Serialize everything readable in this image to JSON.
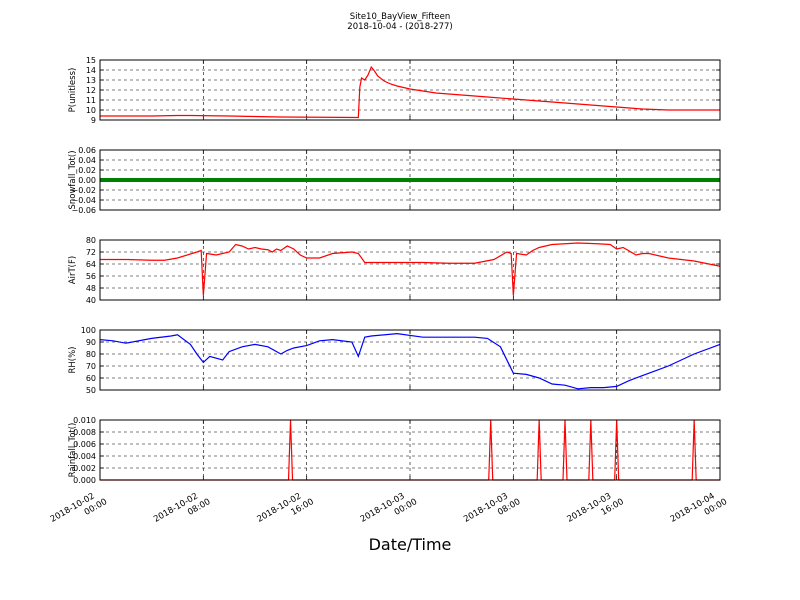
{
  "figure": {
    "title": "Site10_BayView_Fifteen",
    "subtitle": "2018-10-04 - (2018-277)",
    "xlabel": "Date/Time",
    "x_ticks": [
      {
        "line1": "2018-10-02",
        "line2": "00:00"
      },
      {
        "line1": "2018-10-02",
        "line2": "08:00"
      },
      {
        "line1": "2018-10-02",
        "line2": "16:00"
      },
      {
        "line1": "2018-10-03",
        "line2": "00:00"
      },
      {
        "line1": "2018-10-03",
        "line2": "08:00"
      },
      {
        "line1": "2018-10-03",
        "line2": "16:00"
      },
      {
        "line1": "2018-10-04",
        "line2": "00:00"
      }
    ],
    "xlim": [
      "2018-10-02 00:00",
      "2018-10-04 00:00"
    ],
    "grid": true
  },
  "chart_data": [
    {
      "type": "line",
      "ylabel": "P(unitless)",
      "ylim": [
        9,
        15
      ],
      "yticks": [
        "9",
        "10",
        "11",
        "12",
        "13",
        "14",
        "15"
      ],
      "color": "#ff0000",
      "series": [
        {
          "x": [
            "2018-10-02 00:00",
            "2018-10-02 04:00",
            "2018-10-02 06:00",
            "2018-10-02 07:00",
            "2018-10-02 10:00",
            "2018-10-02 14:00",
            "2018-10-02 20:00",
            "2018-10-02 20:07",
            "2018-10-02 20:15",
            "2018-10-02 20:30",
            "2018-10-02 20:45",
            "2018-10-02 21:00",
            "2018-10-02 21:15",
            "2018-10-02 21:30",
            "2018-10-02 22:00",
            "2018-10-02 22:30",
            "2018-10-02 23:00",
            "2018-10-03 00:00",
            "2018-10-03 01:00",
            "2018-10-03 02:00",
            "2018-10-03 04:00",
            "2018-10-03 06:00",
            "2018-10-03 08:00",
            "2018-10-03 10:00",
            "2018-10-03 12:00",
            "2018-10-03 14:00",
            "2018-10-03 16:00",
            "2018-10-03 18:00",
            "2018-10-03 20:00",
            "2018-10-03 22:00",
            "2018-10-04 00:00"
          ],
          "values": [
            9.4,
            9.4,
            9.45,
            9.45,
            9.4,
            9.3,
            9.25,
            12.3,
            13.2,
            13.0,
            13.5,
            14.3,
            13.9,
            13.4,
            12.9,
            12.6,
            12.4,
            12.1,
            11.9,
            11.7,
            11.5,
            11.3,
            11.1,
            10.9,
            10.7,
            10.5,
            10.3,
            10.1,
            10.0,
            10.0,
            10.0
          ]
        }
      ]
    },
    {
      "type": "scatter",
      "ylabel": "Snowfall_Tot()",
      "ylim": [
        -0.06,
        0.06
      ],
      "yticks": [
        "0.06",
        "0.04",
        "0.02",
        "0.00",
        "−0.02",
        "−0.04",
        "−0.06"
      ],
      "color": "#008000",
      "series": [
        {
          "x": [
            "2018-10-02 00:00",
            "2018-10-04 00:00"
          ],
          "values": [
            0,
            0
          ],
          "note_constant": 0
        }
      ]
    },
    {
      "type": "line",
      "ylabel": "AirT(F)",
      "ylim": [
        40,
        80
      ],
      "yticks": [
        "40",
        "48",
        "56",
        "64",
        "72",
        "80"
      ],
      "color": "#ff0000",
      "series": [
        {
          "x": [
            "2018-10-02 00:00",
            "2018-10-02 02:00",
            "2018-10-02 04:00",
            "2018-10-02 05:00",
            "2018-10-02 06:00",
            "2018-10-02 07:30",
            "2018-10-02 07:50",
            "2018-10-02 08:00",
            "2018-10-02 08:15",
            "2018-10-02 09:00",
            "2018-10-02 10:00",
            "2018-10-02 10:30",
            "2018-10-02 11:00",
            "2018-10-02 11:30",
            "2018-10-02 12:00",
            "2018-10-02 12:30",
            "2018-10-02 13:00",
            "2018-10-02 13:20",
            "2018-10-02 13:40",
            "2018-10-02 14:00",
            "2018-10-02 14:30",
            "2018-10-02 15:00",
            "2018-10-02 15:30",
            "2018-10-02 16:00",
            "2018-10-02 17:00",
            "2018-10-02 18:00",
            "2018-10-02 19:30",
            "2018-10-02 20:00",
            "2018-10-02 20:30",
            "2018-10-02 21:00",
            "2018-10-02 23:00",
            "2018-10-03 01:00",
            "2018-10-03 03:00",
            "2018-10-03 05:00",
            "2018-10-03 06:30",
            "2018-10-03 07:30",
            "2018-10-03 07:50",
            "2018-10-03 08:00",
            "2018-10-03 08:15",
            "2018-10-03 09:00",
            "2018-10-03 09:30",
            "2018-10-03 10:00",
            "2018-10-03 11:00",
            "2018-10-03 13:00",
            "2018-10-03 14:30",
            "2018-10-03 15:30",
            "2018-10-03 16:00",
            "2018-10-03 16:30",
            "2018-10-03 17:30",
            "2018-10-03 18:00",
            "2018-10-03 18:30",
            "2018-10-03 20:00",
            "2018-10-03 22:00",
            "2018-10-04 00:00"
          ],
          "values": [
            67,
            67,
            66.5,
            66.5,
            68,
            72,
            73,
            43,
            71,
            70,
            72,
            77,
            76,
            74,
            75,
            74,
            73.5,
            72,
            74,
            73,
            76,
            74,
            70,
            68,
            68,
            71,
            72,
            71,
            65,
            65,
            65,
            65,
            64.5,
            64.5,
            67,
            72,
            71,
            43,
            71,
            70,
            73,
            75,
            77,
            78,
            77.5,
            77,
            74,
            75,
            70,
            71,
            71,
            68,
            66,
            62.5
          ]
        }
      ]
    },
    {
      "type": "line",
      "ylabel": "RH(%)",
      "ylim": [
        50,
        100
      ],
      "yticks": [
        "50",
        "60",
        "70",
        "80",
        "90",
        "100"
      ],
      "color": "#0000ff",
      "series": [
        {
          "x": [
            "2018-10-02 00:00",
            "2018-10-02 01:00",
            "2018-10-02 02:00",
            "2018-10-02 04:00",
            "2018-10-02 05:30",
            "2018-10-02 06:00",
            "2018-10-02 07:00",
            "2018-10-02 07:30",
            "2018-10-02 08:00",
            "2018-10-02 08:30",
            "2018-10-02 09:30",
            "2018-10-02 10:00",
            "2018-10-02 11:00",
            "2018-10-02 12:00",
            "2018-10-02 13:00",
            "2018-10-02 14:00",
            "2018-10-02 14:30",
            "2018-10-02 15:00",
            "2018-10-02 16:00",
            "2018-10-02 17:00",
            "2018-10-02 18:00",
            "2018-10-02 19:30",
            "2018-10-02 20:00",
            "2018-10-02 20:30",
            "2018-10-02 21:00",
            "2018-10-02 23:00",
            "2018-10-03 01:00",
            "2018-10-03 03:00",
            "2018-10-03 05:00",
            "2018-10-03 06:00",
            "2018-10-03 07:00",
            "2018-10-03 08:00",
            "2018-10-03 09:00",
            "2018-10-03 10:00",
            "2018-10-03 11:00",
            "2018-10-03 12:00",
            "2018-10-03 13:00",
            "2018-10-03 14:00",
            "2018-10-03 15:00",
            "2018-10-03 16:00",
            "2018-10-03 17:00",
            "2018-10-03 18:00",
            "2018-10-03 19:00",
            "2018-10-03 20:00",
            "2018-10-03 22:00",
            "2018-10-04 00:00"
          ],
          "values": [
            92,
            91,
            89,
            93,
            95,
            96,
            88,
            80,
            73,
            78,
            75,
            82,
            86,
            88,
            86,
            80,
            83,
            85,
            87,
            91,
            92,
            90,
            78,
            94,
            95,
            97,
            94,
            94,
            94,
            93,
            86,
            64,
            63,
            60,
            55,
            54,
            51,
            52,
            52,
            53,
            58,
            62,
            66,
            70,
            80,
            88
          ]
        }
      ]
    },
    {
      "type": "line",
      "ylabel": "Rainfall_Tot()",
      "ylim": [
        0,
        0.01
      ],
      "yticks": [
        "0.000",
        "0.002",
        "0.004",
        "0.006",
        "0.008",
        "0.010"
      ],
      "color": "#ff0000",
      "spikes_at": [
        "2018-10-02 14:45",
        "2018-10-03 06:15",
        "2018-10-03 10:00",
        "2018-10-03 12:00",
        "2018-10-03 14:00",
        "2018-10-03 16:00",
        "2018-10-03 22:00"
      ],
      "spike_value": 0.01,
      "baseline": 0
    }
  ]
}
